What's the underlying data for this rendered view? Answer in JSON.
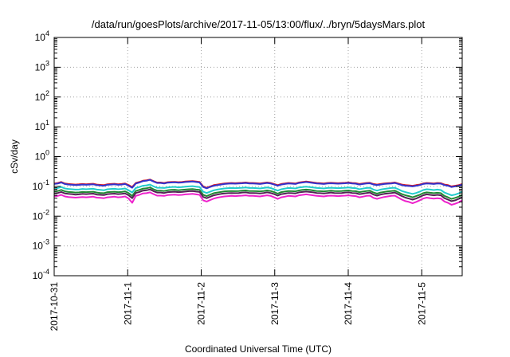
{
  "chart_data": {
    "type": "line",
    "title": "/data/run/goesPlots/archive/2017-11-05/13:00/flux/../bryn/5daysMars.plot",
    "xlabel": "Coordinated Universal Time (UTC)",
    "ylabel": "cSv/day",
    "y_scale": "log",
    "ylim_exponents": [
      -4,
      4
    ],
    "y_tick_base": "10",
    "y_tick_exponents": [
      "-4",
      "-3",
      "-2",
      "-1",
      "0",
      "1",
      "2",
      "3",
      "4"
    ],
    "x_tick_labels": [
      "2017-10-31",
      "2017-11-1",
      "2017-11-2",
      "2017-11-3",
      "2017-11-4",
      "2017-11-5"
    ],
    "x_range_days": [
      0,
      5.55
    ],
    "grid": true,
    "legend": "none",
    "series_colors": [
      "#e31a1c",
      "#3333cc",
      "#22cccc",
      "#228833",
      "#552255",
      "#ee22cc"
    ],
    "series": [
      {
        "values": [
          0.125,
          0.13,
          0.14,
          0.125,
          0.12,
          0.118,
          0.115,
          0.117,
          0.12,
          0.118,
          0.12,
          0.122,
          0.115,
          0.112,
          0.11,
          0.118,
          0.12,
          0.122,
          0.118,
          0.12,
          0.125,
          0.11,
          0.095,
          0.13,
          0.14,
          0.155,
          0.16,
          0.17,
          0.15,
          0.135,
          0.135,
          0.13,
          0.138,
          0.14,
          0.142,
          0.138,
          0.14,
          0.145,
          0.148,
          0.15,
          0.145,
          0.14,
          0.1,
          0.09,
          0.1,
          0.11,
          0.115,
          0.12,
          0.125,
          0.128,
          0.13,
          0.128,
          0.13,
          0.132,
          0.135,
          0.13,
          0.13,
          0.128,
          0.125,
          0.13,
          0.135,
          0.13,
          0.12,
          0.11,
          0.12,
          0.125,
          0.13,
          0.128,
          0.125,
          0.135,
          0.14,
          0.145,
          0.14,
          0.135,
          0.13,
          0.128,
          0.125,
          0.13,
          0.132,
          0.13,
          0.128,
          0.13,
          0.132,
          0.135,
          0.13,
          0.128,
          0.12,
          0.125,
          0.13,
          0.132,
          0.12,
          0.115,
          0.12,
          0.125,
          0.128,
          0.13,
          0.135,
          0.125,
          0.115,
          0.11,
          0.108,
          0.105,
          0.11,
          0.115,
          0.125,
          0.13,
          0.128,
          0.125,
          0.13,
          0.128,
          0.115,
          0.11,
          0.1,
          0.105,
          0.11,
          0.12
        ]
      },
      {
        "values": [
          0.12,
          0.125,
          0.135,
          0.12,
          0.115,
          0.113,
          0.11,
          0.112,
          0.115,
          0.113,
          0.115,
          0.117,
          0.11,
          0.107,
          0.105,
          0.113,
          0.115,
          0.117,
          0.113,
          0.115,
          0.12,
          0.105,
          0.09,
          0.125,
          0.135,
          0.15,
          0.155,
          0.165,
          0.145,
          0.13,
          0.13,
          0.125,
          0.133,
          0.135,
          0.137,
          0.133,
          0.135,
          0.14,
          0.143,
          0.145,
          0.14,
          0.135,
          0.095,
          0.086,
          0.096,
          0.105,
          0.11,
          0.115,
          0.12,
          0.123,
          0.125,
          0.123,
          0.125,
          0.127,
          0.13,
          0.125,
          0.125,
          0.123,
          0.12,
          0.125,
          0.13,
          0.125,
          0.115,
          0.105,
          0.115,
          0.12,
          0.125,
          0.123,
          0.12,
          0.13,
          0.135,
          0.14,
          0.135,
          0.13,
          0.125,
          0.123,
          0.12,
          0.125,
          0.127,
          0.125,
          0.123,
          0.125,
          0.127,
          0.13,
          0.125,
          0.123,
          0.115,
          0.12,
          0.125,
          0.127,
          0.115,
          0.11,
          0.115,
          0.12,
          0.123,
          0.125,
          0.13,
          0.12,
          0.11,
          0.105,
          0.103,
          0.1,
          0.105,
          0.11,
          0.12,
          0.125,
          0.123,
          0.12,
          0.125,
          0.123,
          0.11,
          0.105,
          0.095,
          0.1,
          0.105,
          0.115
        ]
      },
      {
        "values": [
          0.085,
          0.088,
          0.095,
          0.085,
          0.082,
          0.08,
          0.078,
          0.079,
          0.082,
          0.08,
          0.082,
          0.083,
          0.078,
          0.076,
          0.074,
          0.08,
          0.082,
          0.083,
          0.08,
          0.082,
          0.085,
          0.074,
          0.062,
          0.088,
          0.095,
          0.105,
          0.108,
          0.115,
          0.1,
          0.09,
          0.09,
          0.088,
          0.093,
          0.095,
          0.096,
          0.093,
          0.095,
          0.098,
          0.1,
          0.102,
          0.098,
          0.095,
          0.066,
          0.06,
          0.067,
          0.074,
          0.078,
          0.082,
          0.085,
          0.087,
          0.088,
          0.087,
          0.088,
          0.09,
          0.092,
          0.088,
          0.088,
          0.087,
          0.085,
          0.088,
          0.092,
          0.088,
          0.08,
          0.072,
          0.08,
          0.084,
          0.088,
          0.087,
          0.085,
          0.092,
          0.095,
          0.098,
          0.095,
          0.092,
          0.088,
          0.087,
          0.085,
          0.088,
          0.09,
          0.088,
          0.087,
          0.088,
          0.09,
          0.092,
          0.088,
          0.087,
          0.08,
          0.084,
          0.088,
          0.09,
          0.078,
          0.072,
          0.078,
          0.082,
          0.085,
          0.088,
          0.09,
          0.08,
          0.07,
          0.064,
          0.06,
          0.056,
          0.06,
          0.066,
          0.075,
          0.08,
          0.078,
          0.075,
          0.078,
          0.075,
          0.062,
          0.056,
          0.05,
          0.053,
          0.058,
          0.066
        ]
      },
      {
        "values": [
          0.068,
          0.07,
          0.076,
          0.068,
          0.065,
          0.064,
          0.062,
          0.063,
          0.065,
          0.064,
          0.065,
          0.066,
          0.062,
          0.06,
          0.059,
          0.064,
          0.065,
          0.066,
          0.064,
          0.065,
          0.068,
          0.059,
          0.048,
          0.07,
          0.076,
          0.084,
          0.086,
          0.092,
          0.08,
          0.072,
          0.072,
          0.07,
          0.074,
          0.076,
          0.077,
          0.074,
          0.076,
          0.078,
          0.08,
          0.081,
          0.078,
          0.076,
          0.052,
          0.047,
          0.053,
          0.059,
          0.062,
          0.065,
          0.068,
          0.069,
          0.07,
          0.069,
          0.07,
          0.072,
          0.073,
          0.07,
          0.07,
          0.069,
          0.068,
          0.07,
          0.073,
          0.07,
          0.064,
          0.057,
          0.064,
          0.067,
          0.07,
          0.069,
          0.068,
          0.073,
          0.076,
          0.078,
          0.076,
          0.073,
          0.07,
          0.069,
          0.068,
          0.07,
          0.072,
          0.07,
          0.069,
          0.07,
          0.072,
          0.073,
          0.07,
          0.069,
          0.064,
          0.067,
          0.07,
          0.072,
          0.062,
          0.057,
          0.062,
          0.065,
          0.068,
          0.07,
          0.072,
          0.063,
          0.055,
          0.05,
          0.047,
          0.043,
          0.047,
          0.052,
          0.059,
          0.063,
          0.061,
          0.059,
          0.061,
          0.059,
          0.048,
          0.043,
          0.038,
          0.041,
          0.045,
          0.052
        ]
      },
      {
        "values": [
          0.058,
          0.06,
          0.065,
          0.058,
          0.056,
          0.055,
          0.053,
          0.054,
          0.056,
          0.055,
          0.056,
          0.057,
          0.053,
          0.052,
          0.051,
          0.055,
          0.056,
          0.057,
          0.055,
          0.056,
          0.058,
          0.05,
          0.04,
          0.06,
          0.065,
          0.072,
          0.074,
          0.079,
          0.069,
          0.062,
          0.062,
          0.06,
          0.064,
          0.065,
          0.066,
          0.064,
          0.065,
          0.067,
          0.069,
          0.07,
          0.067,
          0.065,
          0.044,
          0.04,
          0.045,
          0.05,
          0.053,
          0.056,
          0.058,
          0.059,
          0.06,
          0.059,
          0.06,
          0.062,
          0.063,
          0.06,
          0.06,
          0.059,
          0.058,
          0.06,
          0.063,
          0.06,
          0.055,
          0.049,
          0.055,
          0.057,
          0.06,
          0.059,
          0.058,
          0.063,
          0.065,
          0.067,
          0.065,
          0.063,
          0.06,
          0.059,
          0.058,
          0.06,
          0.062,
          0.06,
          0.059,
          0.06,
          0.062,
          0.063,
          0.06,
          0.059,
          0.055,
          0.057,
          0.06,
          0.062,
          0.053,
          0.049,
          0.053,
          0.056,
          0.058,
          0.06,
          0.062,
          0.054,
          0.047,
          0.042,
          0.039,
          0.036,
          0.039,
          0.044,
          0.05,
          0.054,
          0.052,
          0.05,
          0.052,
          0.05,
          0.04,
          0.036,
          0.032,
          0.034,
          0.038,
          0.044
        ]
      },
      {
        "values": [
          0.046,
          0.048,
          0.052,
          0.046,
          0.044,
          0.043,
          0.042,
          0.043,
          0.044,
          0.043,
          0.044,
          0.045,
          0.042,
          0.041,
          0.04,
          0.043,
          0.044,
          0.045,
          0.043,
          0.044,
          0.046,
          0.039,
          0.028,
          0.048,
          0.052,
          0.058,
          0.059,
          0.063,
          0.055,
          0.049,
          0.049,
          0.048,
          0.051,
          0.052,
          0.053,
          0.051,
          0.052,
          0.054,
          0.055,
          0.056,
          0.054,
          0.052,
          0.034,
          0.031,
          0.035,
          0.039,
          0.042,
          0.044,
          0.046,
          0.047,
          0.048,
          0.047,
          0.048,
          0.049,
          0.05,
          0.048,
          0.048,
          0.047,
          0.046,
          0.048,
          0.05,
          0.048,
          0.043,
          0.038,
          0.043,
          0.045,
          0.048,
          0.047,
          0.046,
          0.05,
          0.052,
          0.054,
          0.052,
          0.05,
          0.048,
          0.047,
          0.046,
          0.048,
          0.049,
          0.048,
          0.047,
          0.048,
          0.049,
          0.05,
          0.048,
          0.047,
          0.043,
          0.045,
          0.048,
          0.049,
          0.041,
          0.038,
          0.041,
          0.044,
          0.046,
          0.048,
          0.049,
          0.042,
          0.036,
          0.032,
          0.03,
          0.027,
          0.03,
          0.034,
          0.039,
          0.042,
          0.04,
          0.039,
          0.04,
          0.039,
          0.031,
          0.028,
          0.024,
          0.026,
          0.029,
          0.034
        ]
      }
    ]
  }
}
